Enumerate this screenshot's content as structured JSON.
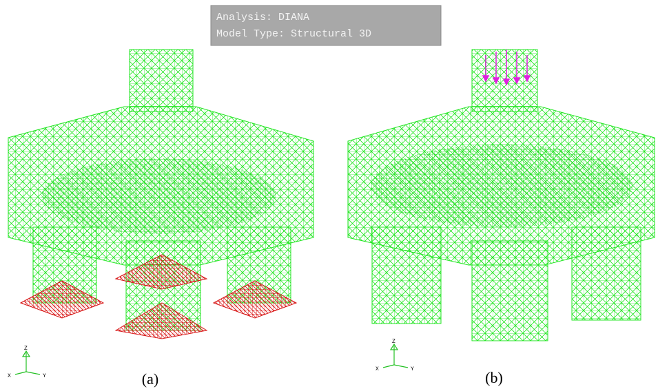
{
  "info_box": {
    "lines": [
      "Analysis: DIANA",
      "Model Type: Structural 3D"
    ]
  },
  "panels": [
    {
      "caption": "(a)",
      "axes": {
        "z": "Z",
        "x": "X",
        "y": "Y"
      }
    },
    {
      "caption": "(b)",
      "axes": {
        "z": "Z",
        "x": "X",
        "y": "Y"
      }
    }
  ]
}
